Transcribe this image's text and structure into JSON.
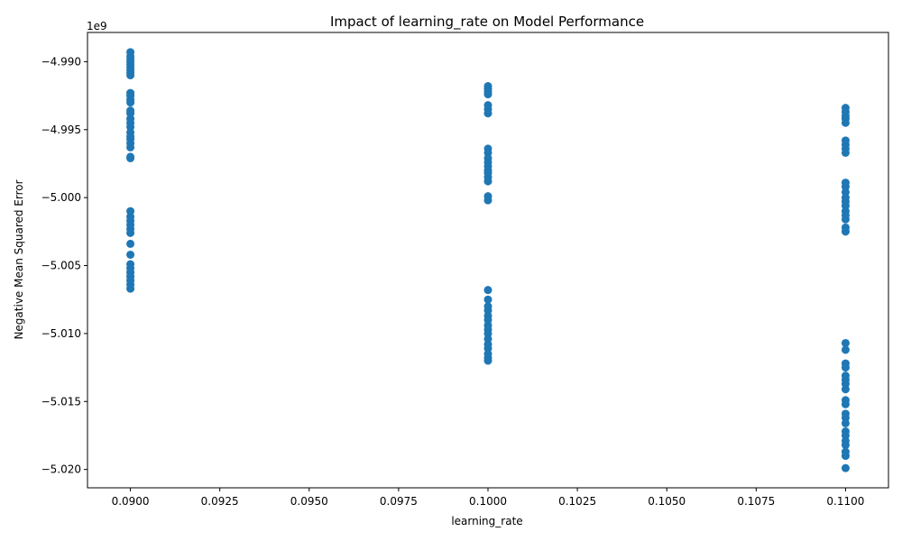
{
  "chart_data": {
    "type": "scatter",
    "title": "Impact of learning_rate on Model Performance",
    "xlabel": "learning_rate",
    "ylabel": "Negative Mean Squared Error",
    "y_offset_text": "1e9",
    "xlim": [
      0.0888,
      0.1112
    ],
    "ylim": [
      -5.02135,
      -4.98785
    ],
    "x_ticks": [
      0.09,
      0.0925,
      0.095,
      0.0975,
      0.1,
      0.1025,
      0.105,
      0.1075,
      0.11
    ],
    "x_tick_labels": [
      "0.0900",
      "0.0925",
      "0.0950",
      "0.0975",
      "0.1000",
      "0.1025",
      "0.1050",
      "0.1075",
      "0.1100"
    ],
    "y_ticks": [
      -4.99,
      -4.995,
      -5.0,
      -5.005,
      -5.01,
      -5.015,
      -5.02
    ],
    "y_tick_labels": [
      "−4.990",
      "−4.995",
      "−5.000",
      "−5.005",
      "−5.010",
      "−5.015",
      "−5.020"
    ],
    "grid": false,
    "point_color": "#1f77b4",
    "series": [
      {
        "x": 0.09,
        "y": [
          -4.9893,
          -4.9896,
          -4.9898,
          -4.99,
          -4.9902,
          -4.9904,
          -4.9906,
          -4.9908,
          -4.991,
          -4.9923,
          -4.9925,
          -4.9928,
          -4.993,
          -4.9936,
          -4.9938,
          -4.9942,
          -4.9945,
          -4.9948,
          -4.9952,
          -4.9955,
          -4.9957,
          -4.996,
          -4.9963,
          -4.997,
          -4.9971,
          -5.001,
          -5.0014,
          -5.0017,
          -5.002,
          -5.0023,
          -5.0026,
          -5.0034,
          -5.0042,
          -5.0049,
          -5.0052,
          -5.0055,
          -5.0058,
          -5.0061,
          -5.0064,
          -5.0067
        ]
      },
      {
        "x": 0.1,
        "y": [
          -4.9918,
          -4.992,
          -4.9922,
          -4.9924,
          -4.9932,
          -4.9935,
          -4.9938,
          -4.9964,
          -4.9967,
          -4.9971,
          -4.9974,
          -4.9977,
          -4.998,
          -4.9982,
          -4.9985,
          -4.9988,
          -4.9999,
          -5.0002,
          -5.0068,
          -5.0075,
          -5.008,
          -5.0083,
          -5.0087,
          -5.009,
          -5.0094,
          -5.0097,
          -5.01,
          -5.0104,
          -5.0108,
          -5.0111,
          -5.0115,
          -5.0118,
          -5.012
        ]
      },
      {
        "x": 0.11,
        "y": [
          -4.9934,
          -4.9937,
          -4.994,
          -4.9942,
          -4.9945,
          -4.9958,
          -4.9961,
          -4.9964,
          -4.9967,
          -4.9989,
          -4.9992,
          -4.9996,
          -5.0,
          -5.0003,
          -5.0006,
          -5.001,
          -5.0013,
          -5.0016,
          -5.0022,
          -5.0025,
          -5.0107,
          -5.0112,
          -5.0122,
          -5.0125,
          -5.0131,
          -5.0134,
          -5.0137,
          -5.0141,
          -5.0149,
          -5.0152,
          -5.0159,
          -5.0162,
          -5.0166,
          -5.0172,
          -5.0175,
          -5.0179,
          -5.0182,
          -5.0187,
          -5.019,
          -5.0199
        ]
      }
    ]
  }
}
